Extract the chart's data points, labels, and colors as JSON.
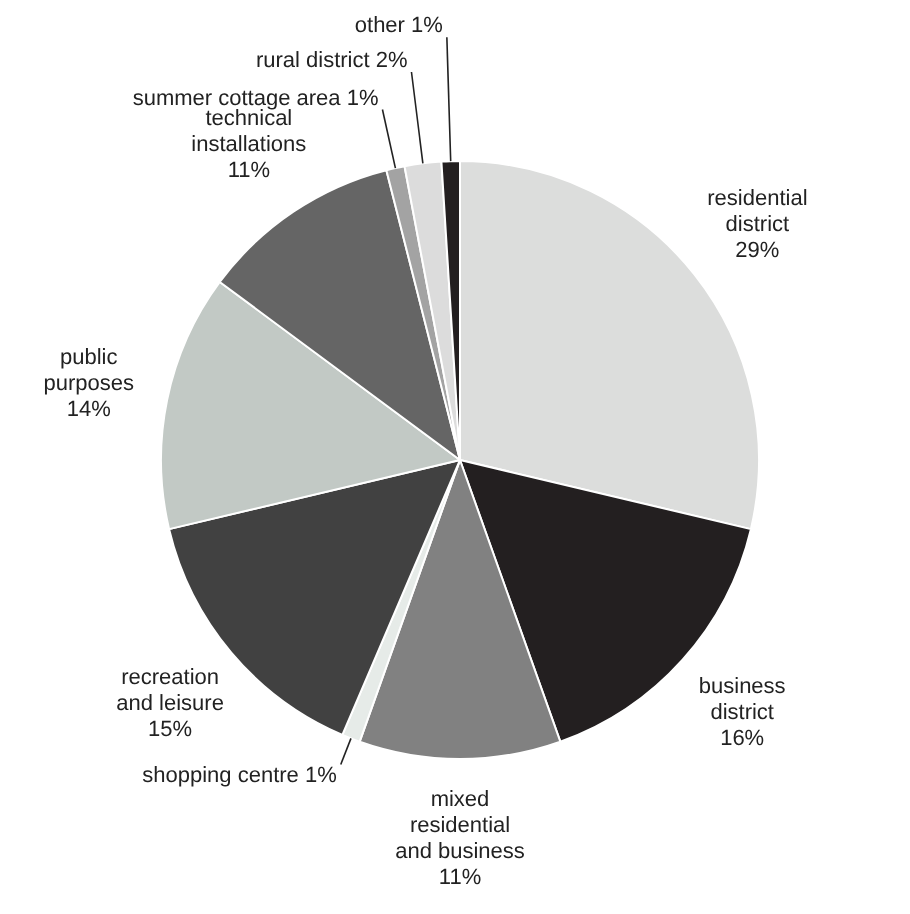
{
  "chart_data": {
    "type": "pie",
    "categories": [
      "residential district",
      "business district",
      "mixed residential and business",
      "shopping centre",
      "recreation and leisure",
      "public purposes",
      "technical installations",
      "summer cottage area",
      "rural district",
      "other"
    ],
    "values": [
      29,
      16,
      11,
      1,
      15,
      14,
      11,
      1,
      2,
      1
    ],
    "value_labels": [
      "29%",
      "16%",
      "11%",
      "1%",
      "15%",
      "14%",
      "11%",
      "1%",
      "2%",
      "1%"
    ],
    "colors": [
      "#dcdddc",
      "#231f20",
      "#818181",
      "#e6ebe8",
      "#414141",
      "#c2c9c5",
      "#656565",
      "#a3a3a3",
      "#dcdcdc",
      "#231f20"
    ],
    "legend": false
  }
}
